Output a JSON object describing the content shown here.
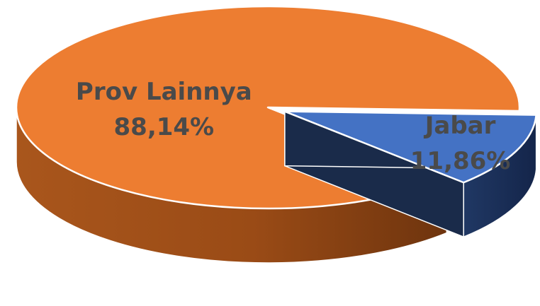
{
  "chart_data": {
    "type": "pie",
    "style": "3d",
    "title": "",
    "slices": [
      {
        "label": "Prov Lainnya",
        "value": 88.14,
        "value_text": "88,14%",
        "color": "#ED7D31",
        "exploded": false
      },
      {
        "label": "Jabar",
        "value": 11.86,
        "value_text": "11,86%",
        "color": "#4472C4",
        "exploded": true
      }
    ],
    "legend": "none"
  }
}
